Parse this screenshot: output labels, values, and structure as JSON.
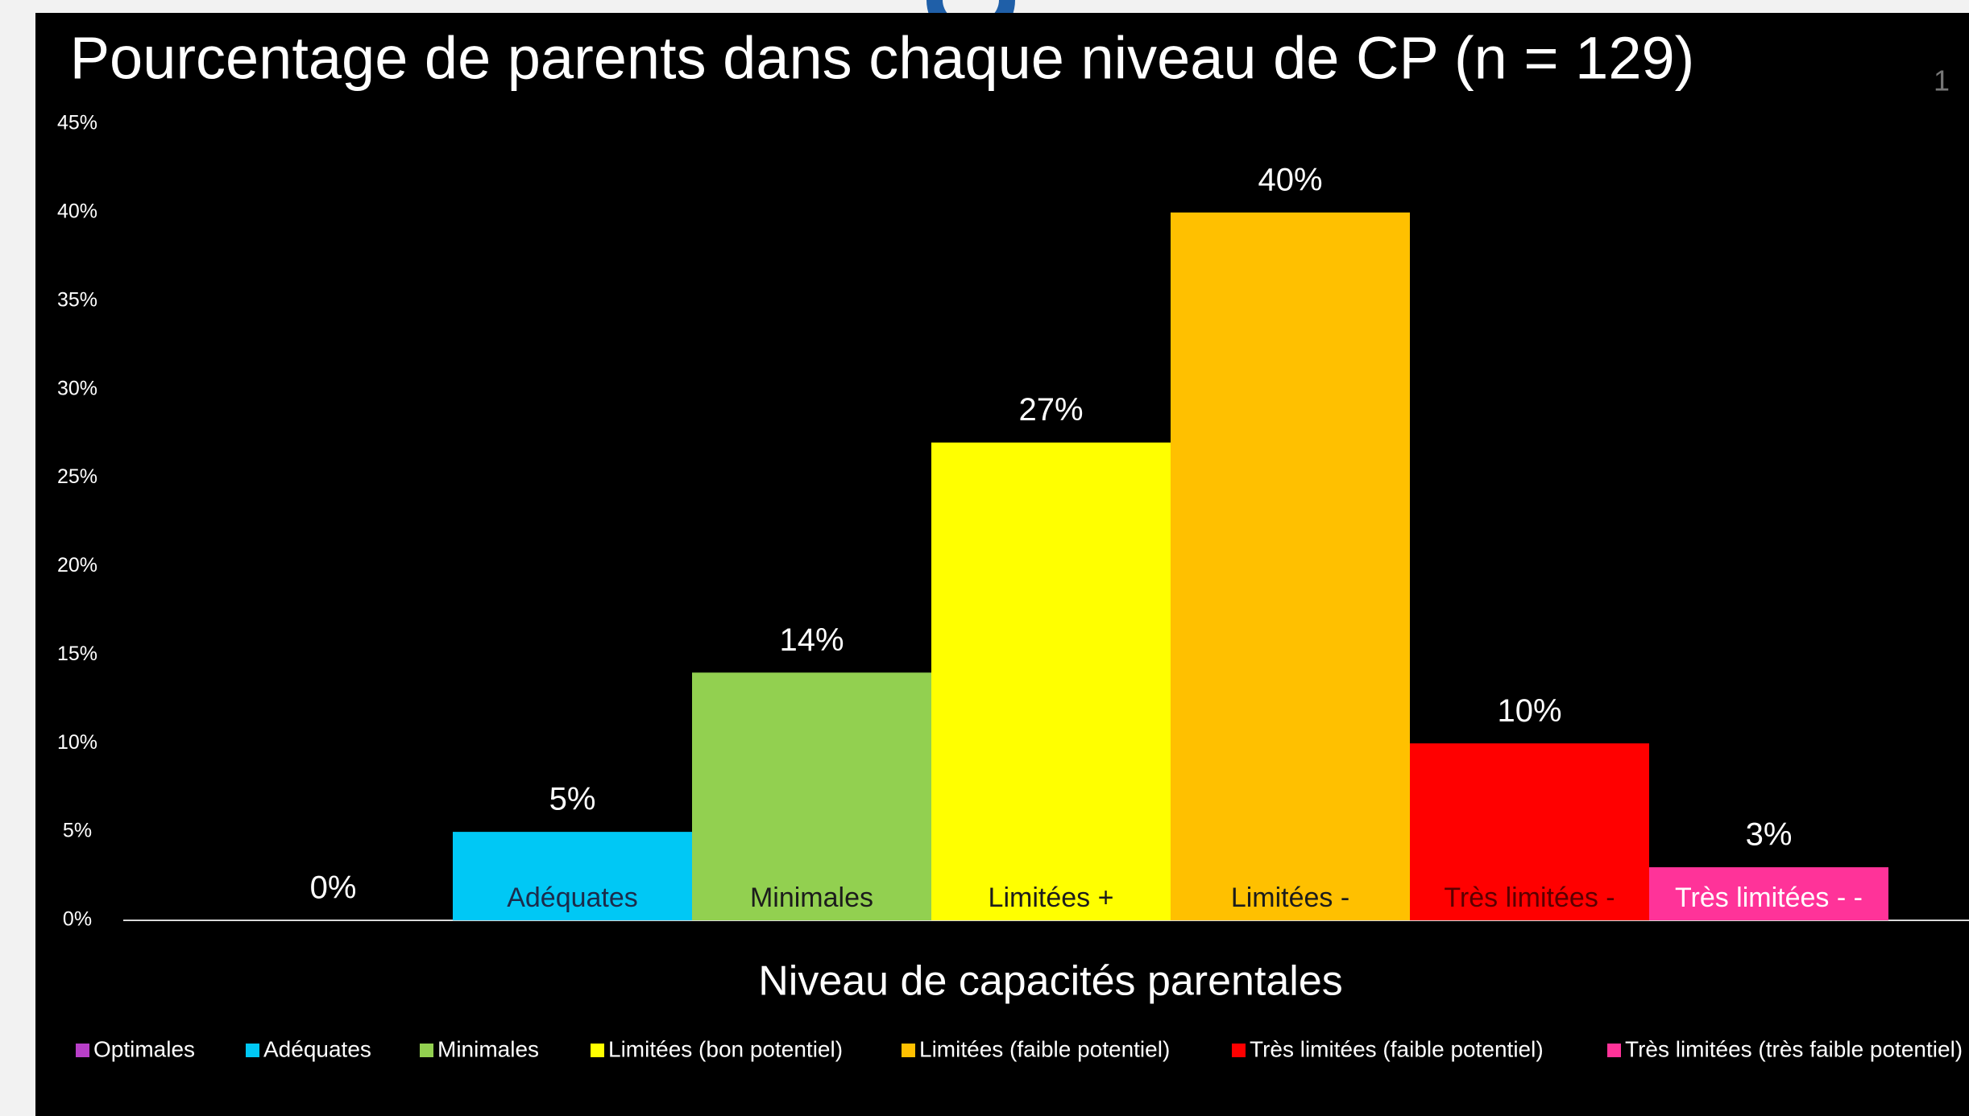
{
  "chart_data": {
    "type": "bar",
    "title": "Pourcentage de parents dans chaque niveau de CP (n = 129)",
    "x_label": "Niveau de capacités parentales",
    "page_number": "1",
    "categories": [
      "Optimales",
      "Adéquates",
      "Minimales",
      "Limitées (bon potentiel)",
      "Limitées (faible potentiel)",
      "Très limitées (faible potentiel)",
      "Très limitées (très faible potentiel)"
    ],
    "values": [
      0,
      5,
      14,
      27,
      40,
      10,
      3
    ],
    "value_labels": [
      "0%",
      "5%",
      "14%",
      "27%",
      "40%",
      "10%",
      "3%"
    ],
    "bar_labels": [
      null,
      "Adéquates",
      "Minimales",
      "Limitées +",
      "Limitées -",
      "Très limitées -",
      "Très limitées - -"
    ],
    "colors": [
      "#b83fc8",
      "#00c8f5",
      "#92d050",
      "#ffff00",
      "#ffc000",
      "#ff0000",
      "#ff3399"
    ],
    "bar_label_colors": [
      "#ffffff",
      "#1c2b4a",
      "#1c1c1c",
      "#1c1c1c",
      "#1c1c1c",
      "#5a0000",
      "#ffffff"
    ],
    "ylim": [
      0,
      45
    ],
    "yticks": [
      {
        "value": 0,
        "label": "0%"
      },
      {
        "value": 5,
        "label": "5%"
      },
      {
        "value": 10,
        "label": "10%"
      },
      {
        "value": 15,
        "label": "15%"
      },
      {
        "value": 20,
        "label": "20%"
      },
      {
        "value": 25,
        "label": "25%"
      },
      {
        "value": 30,
        "label": "30%"
      },
      {
        "value": 35,
        "label": "35%"
      },
      {
        "value": 40,
        "label": "40%"
      },
      {
        "value": 45,
        "label": "45%"
      }
    ],
    "grid": false,
    "legend": "bottom"
  }
}
